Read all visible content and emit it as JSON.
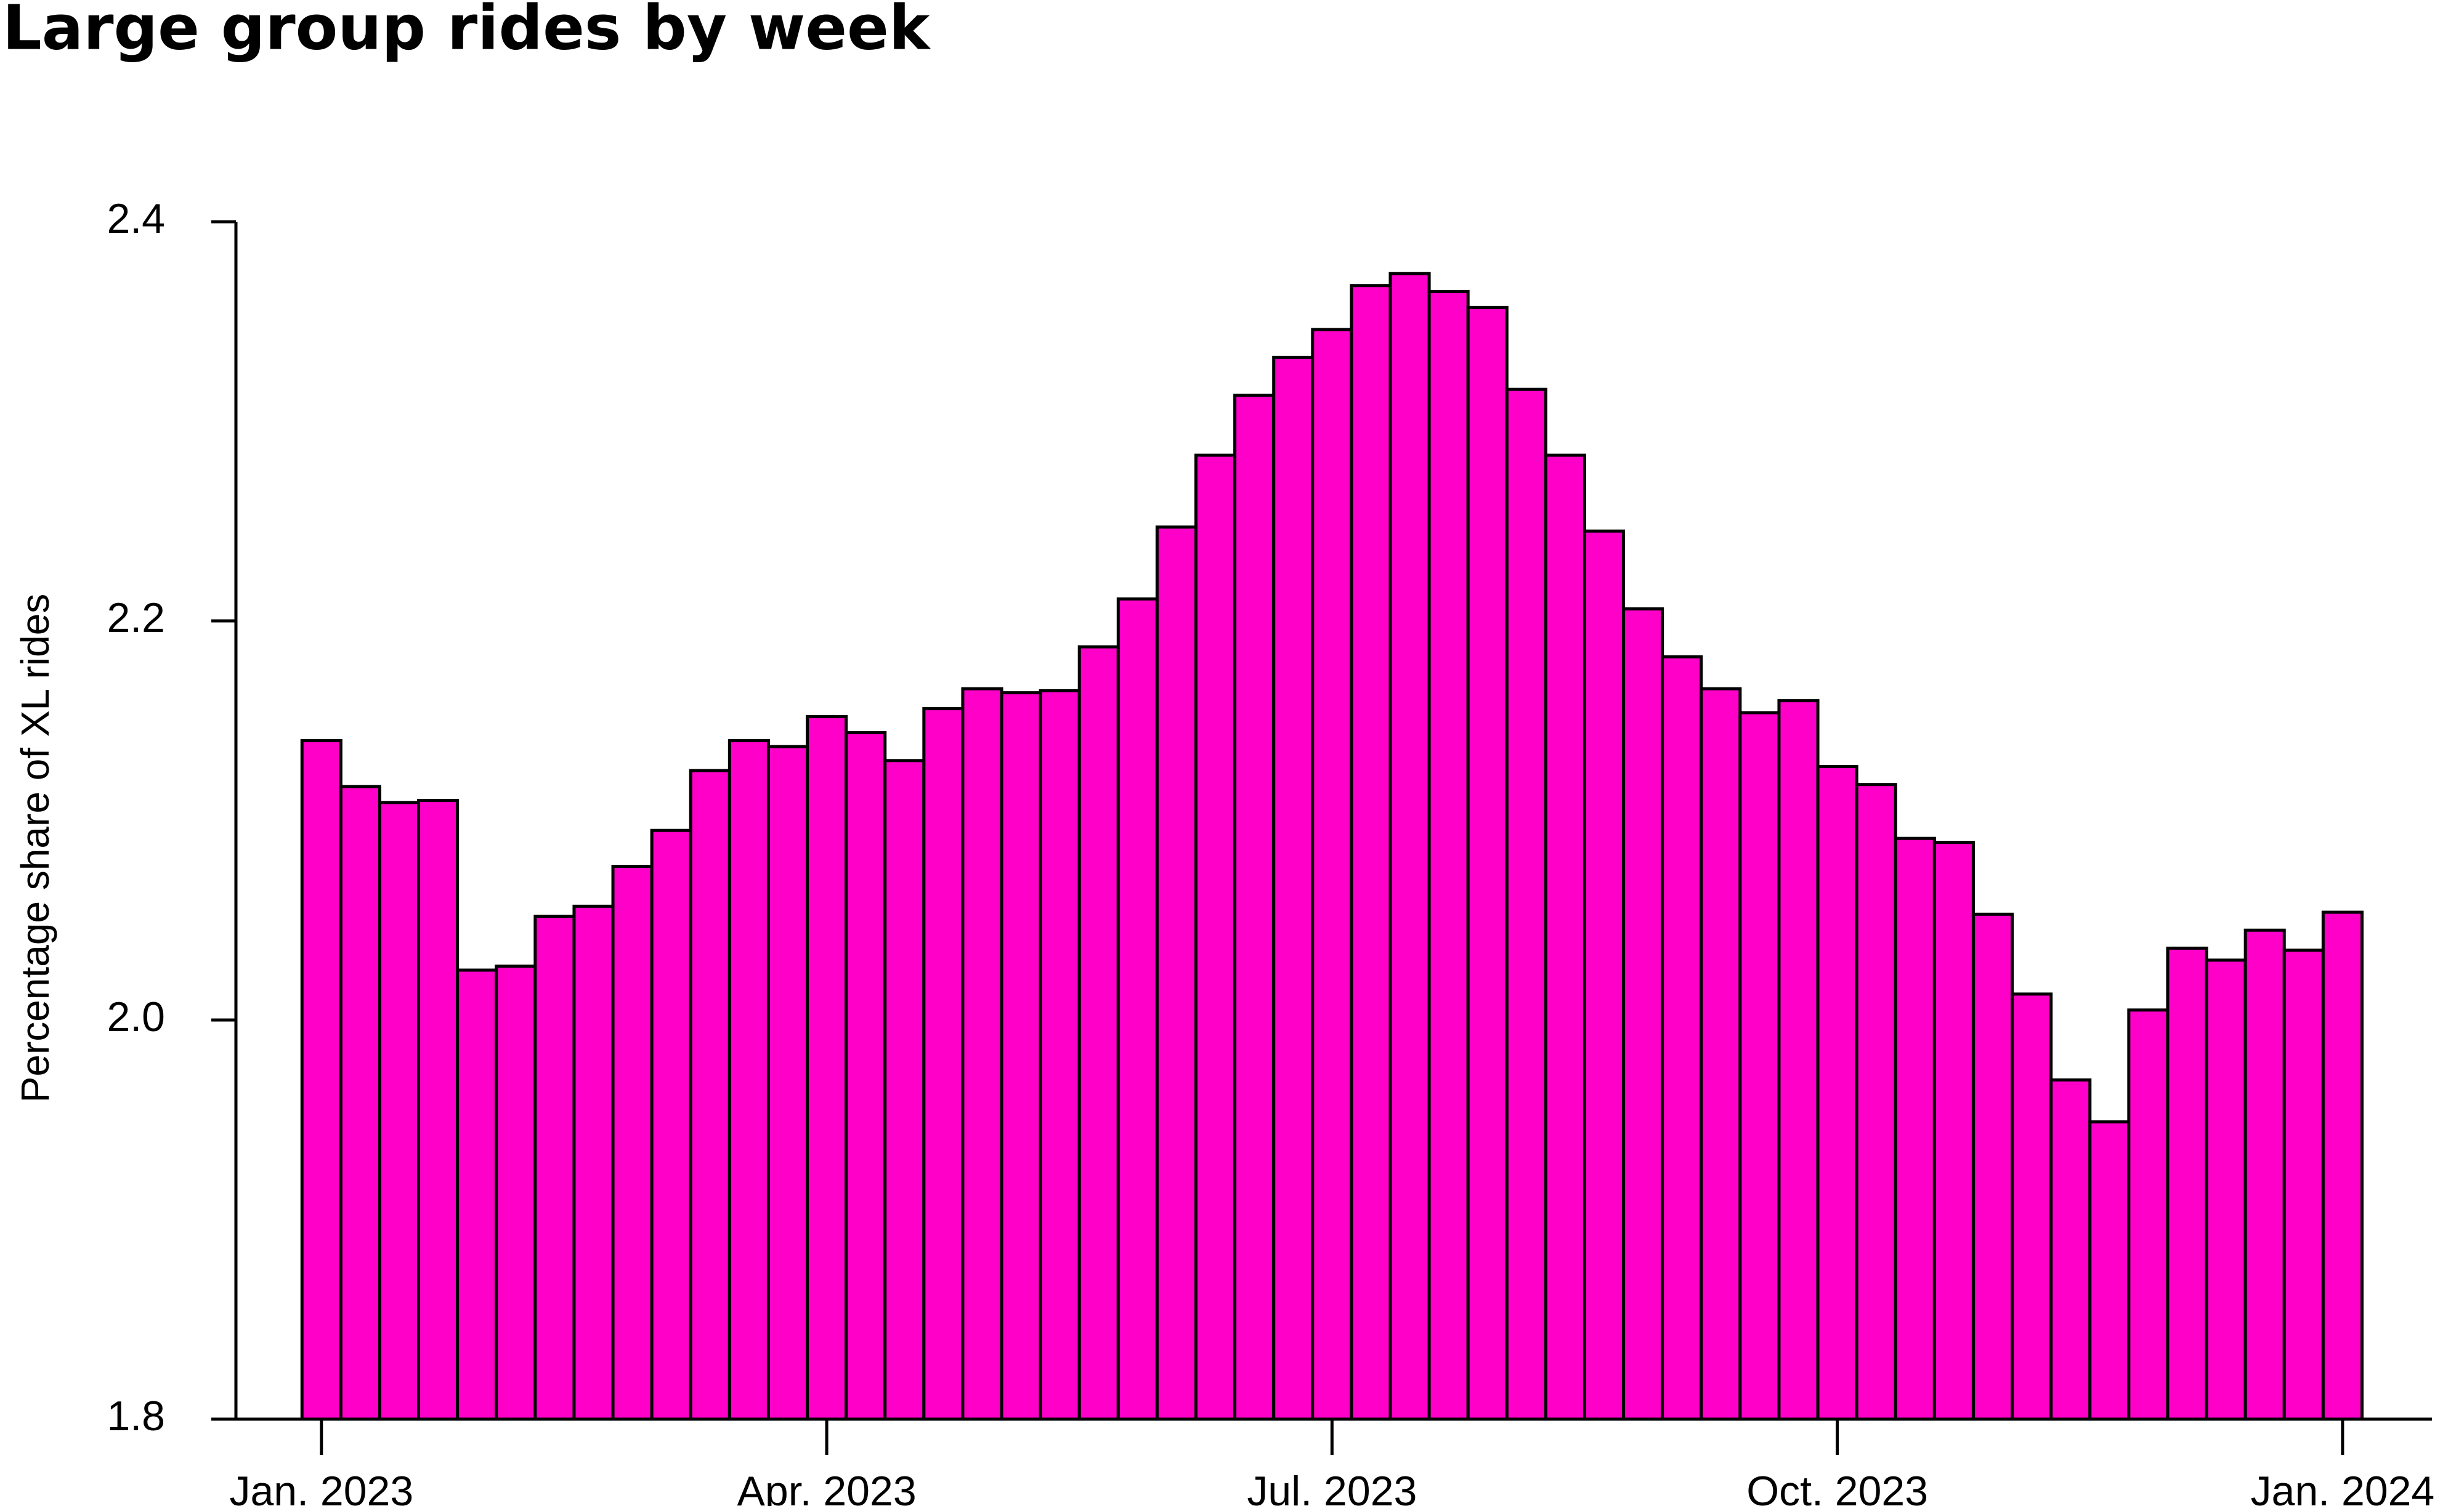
{
  "chart_data": {
    "type": "bar",
    "title": "Large group rides by week",
    "y_label": "Percentage share of XL rides",
    "color": "#ff00c8",
    "categories": [
      null,
      null,
      null,
      null,
      null,
      null,
      null,
      null,
      null,
      null,
      null,
      null,
      null,
      null,
      null,
      null,
      null,
      null,
      null,
      null,
      null,
      null,
      null,
      null,
      null,
      null,
      null,
      null,
      null,
      null,
      null,
      null,
      null,
      null,
      null,
      null,
      null,
      null,
      null,
      null,
      null,
      null,
      null,
      null,
      null,
      null,
      null,
      null,
      null,
      null,
      null,
      null,
      null
    ],
    "values": [
      2.14,
      2.117,
      2.109,
      2.11,
      2.025,
      2.027,
      2.052,
      2.057,
      2.077,
      2.095,
      2.125,
      2.14,
      2.137,
      2.152,
      2.144,
      2.13,
      2.156,
      2.166,
      2.164,
      2.165,
      2.187,
      2.211,
      2.247,
      2.283,
      2.313,
      2.332,
      2.346,
      2.368,
      2.374,
      2.365,
      2.357,
      2.316,
      2.283,
      2.245,
      2.206,
      2.182,
      2.166,
      2.154,
      2.16,
      2.127,
      2.118,
      2.091,
      2.089,
      2.053,
      2.013,
      1.97,
      1.949,
      2.005,
      2.036,
      2.03,
      2.045,
      2.035,
      2.054
    ],
    "xlim": [
      -2.2,
      54.3
    ],
    "xticks": [
      {
        "value": 0,
        "label": "Jan. 2023"
      },
      {
        "value": 13,
        "label": "Apr. 2023"
      },
      {
        "value": 26,
        "label": "Jul. 2023"
      },
      {
        "value": 39,
        "label": "Oct. 2023"
      },
      {
        "value": 52,
        "label": "Jan. 2024"
      }
    ],
    "ylim": [
      1.8,
      2.4
    ],
    "yticks": [
      1.8,
      {
        "value": 2,
        "label": "2.0"
      },
      2.2,
      2.4
    ]
  }
}
